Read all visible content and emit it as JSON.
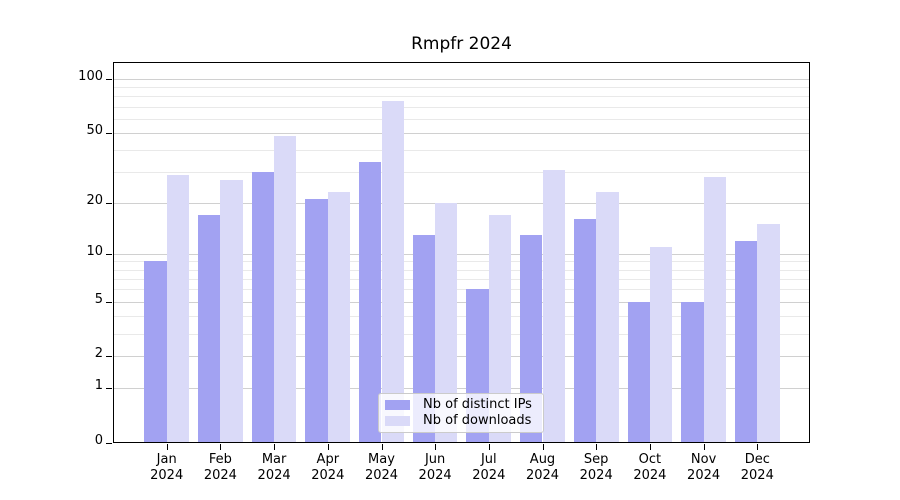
{
  "chart_data": {
    "type": "bar",
    "title": "Rmpfr 2024",
    "categories": [
      "Jan",
      "Feb",
      "Mar",
      "Apr",
      "May",
      "Jun",
      "Jul",
      "Aug",
      "Sep",
      "Oct",
      "Nov",
      "Dec"
    ],
    "x_year_label": "2024",
    "series": [
      {
        "name": "Nb of distinct IPs",
        "color": "#a2a2f2",
        "values": [
          9,
          17,
          30,
          21,
          34,
          13,
          6,
          13,
          16,
          5,
          5,
          12
        ]
      },
      {
        "name": "Nb of downloads",
        "color": "#dadaf8",
        "values": [
          29,
          27,
          48,
          23,
          75,
          20,
          17,
          31,
          23,
          11,
          28,
          15
        ]
      }
    ],
    "yscale": "log1p",
    "ylim": [
      0,
      124
    ],
    "y_major_ticks": [
      0,
      1,
      2,
      5,
      10,
      20,
      50,
      100
    ],
    "y_minor_gridlines": [
      3,
      4,
      6,
      7,
      8,
      9,
      30,
      40,
      60,
      70,
      80,
      90
    ],
    "grid": true,
    "legend_position": "lower-center"
  },
  "colors": {
    "distinct_ips_bar": "#a2a2f2",
    "downloads_bar": "#dadaf8",
    "major_grid": "#d0d0d0",
    "minor_grid": "#e9e9e9",
    "axis": "#000000",
    "background": "#ffffff"
  }
}
